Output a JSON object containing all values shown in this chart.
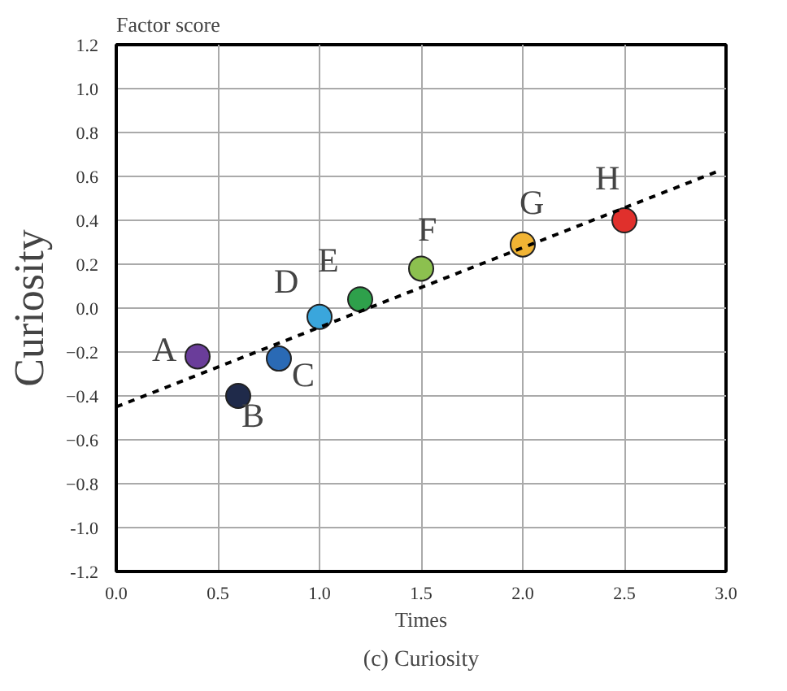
{
  "chart_data": {
    "type": "scatter",
    "title": "(c) Curiosity",
    "xlabel": "Times",
    "ylabel": "Curiosity",
    "xlim": [
      0,
      3
    ],
    "ylim": [
      -1.2,
      1.2
    ],
    "xticks": [
      {
        "value": 0,
        "label": "0.0"
      },
      0.5,
      {
        "value": 1,
        "label": "1.0"
      },
      1.5,
      {
        "value": 2,
        "label": "2.0"
      },
      2.5,
      {
        "value": 3,
        "label": "3.0"
      }
    ],
    "yticks": [
      {
        "value": -1.2,
        "label": "-1.2"
      },
      {
        "value": -1,
        "label": "-1.0"
      },
      -0.8,
      -0.6,
      -0.4,
      -0.2,
      {
        "value": 0,
        "label": "0.0"
      },
      0.2,
      0.4,
      0.6,
      0.8,
      {
        "value": 1,
        "label": "1.0"
      },
      1.2
    ],
    "grid": true,
    "series": [
      {
        "marker": "circle",
        "x": [
          0.4,
          0.6,
          0.8,
          1.0,
          1.2,
          1.5,
          2.0,
          2.5
        ],
        "values": [
          -0.22,
          -0.4,
          -0.23,
          -0.04,
          0.04,
          0.18,
          0.29,
          0.4
        ],
        "colors": [
          "#6a3d9a",
          "#1f2a4a",
          "#2a6ab5",
          "#3aa6dc",
          "#2ea04b",
          "#8cc04f",
          "#f1b434",
          "#e0302c"
        ]
      },
      {
        "type": "line",
        "x": [
          0,
          2.95
        ],
        "values": [
          -0.45,
          0.62
        ],
        "color": "#000000",
        "line_style": "dashed"
      }
    ],
    "annotations": [
      {
        "text": "A",
        "x": 0.4,
        "y": -0.22
      },
      {
        "text": "B",
        "x": 0.6,
        "y": -0.4
      },
      {
        "text": "C",
        "x": 0.8,
        "y": -0.23
      },
      {
        "text": "D",
        "x": 1.0,
        "y": -0.04
      },
      {
        "text": "E",
        "x": 1.2,
        "y": 0.04
      },
      {
        "text": "F",
        "x": 1.5,
        "y": 0.18
      },
      {
        "text": "G",
        "x": 2.0,
        "y": 0.29
      },
      {
        "text": "H",
        "x": 2.5,
        "y": 0.4
      },
      "Factor score"
    ]
  }
}
